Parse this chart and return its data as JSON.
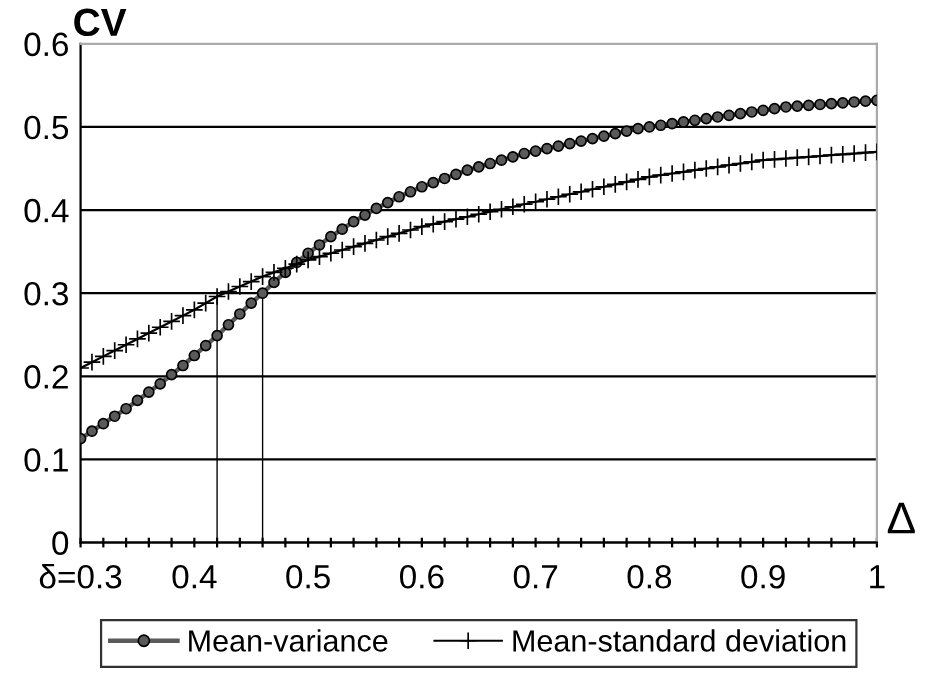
{
  "chart_data": {
    "type": "line",
    "xlabel": "Δ",
    "ylabel": "CV",
    "xlim": [
      0.3,
      1
    ],
    "ylim": [
      0,
      0.6
    ],
    "xticks": [
      {
        "value": 0.3,
        "label": "δ=0.3"
      },
      {
        "value": 0.32,
        "label": null
      },
      {
        "value": 0.34,
        "label": null
      },
      {
        "value": 0.36,
        "label": null
      },
      {
        "value": 0.38,
        "label": null
      },
      0.4,
      {
        "value": 0.42,
        "label": null
      },
      {
        "value": 0.44,
        "label": null
      },
      {
        "value": 0.46,
        "label": null
      },
      {
        "value": 0.48,
        "label": null
      },
      0.5,
      {
        "value": 0.52,
        "label": null
      },
      {
        "value": 0.54,
        "label": null
      },
      {
        "value": 0.56,
        "label": null
      },
      {
        "value": 0.58,
        "label": null
      },
      0.6,
      {
        "value": 0.62,
        "label": null
      },
      {
        "value": 0.64,
        "label": null
      },
      {
        "value": 0.66,
        "label": null
      },
      {
        "value": 0.68,
        "label": null
      },
      0.7,
      {
        "value": 0.72,
        "label": null
      },
      {
        "value": 0.74,
        "label": null
      },
      {
        "value": 0.76,
        "label": null
      },
      {
        "value": 0.78,
        "label": null
      },
      0.8,
      {
        "value": 0.82,
        "label": null
      },
      {
        "value": 0.84,
        "label": null
      },
      {
        "value": 0.86,
        "label": null
      },
      {
        "value": 0.88,
        "label": null
      },
      0.9,
      {
        "value": 0.92,
        "label": null
      },
      {
        "value": 0.94,
        "label": null
      },
      {
        "value": 0.96,
        "label": null
      },
      {
        "value": 0.98,
        "label": null
      },
      1
    ],
    "yticks": [
      0,
      0.1,
      0.2,
      0.3,
      0.4,
      0.5,
      0.6
    ],
    "grid": "y",
    "legend": "bottom",
    "x": [
      0.3,
      0.31,
      0.32,
      0.33,
      0.34,
      0.35,
      0.36,
      0.37,
      0.38,
      0.39,
      0.4,
      0.41,
      0.42,
      0.43,
      0.44,
      0.45,
      0.46,
      0.47,
      0.48,
      0.49,
      0.5,
      0.51,
      0.52,
      0.53,
      0.54,
      0.55,
      0.56,
      0.57,
      0.58,
      0.59,
      0.6,
      0.61,
      0.62,
      0.63,
      0.64,
      0.65,
      0.66,
      0.67,
      0.68,
      0.69,
      0.7,
      0.71,
      0.72,
      0.73,
      0.74,
      0.75,
      0.76,
      0.77,
      0.78,
      0.79,
      0.8,
      0.81,
      0.82,
      0.83,
      0.84,
      0.85,
      0.86,
      0.87,
      0.88,
      0.89,
      0.9,
      0.91,
      0.92,
      0.93,
      0.94,
      0.95,
      0.96,
      0.97,
      0.98,
      0.99,
      1
    ],
    "series": [
      {
        "name": "Mean-variance",
        "color": "#5a5a5a",
        "marker": "circle",
        "values": [
          0.125,
          0.134,
          0.143,
          0.152,
          0.161,
          0.171,
          0.181,
          0.191,
          0.202,
          0.213,
          0.225,
          0.237,
          0.249,
          0.262,
          0.275,
          0.288,
          0.3,
          0.313,
          0.325,
          0.337,
          0.348,
          0.358,
          0.368,
          0.377,
          0.386,
          0.394,
          0.402,
          0.409,
          0.416,
          0.422,
          0.428,
          0.433,
          0.438,
          0.443,
          0.448,
          0.452,
          0.456,
          0.46,
          0.464,
          0.468,
          0.471,
          0.474,
          0.477,
          0.48,
          0.483,
          0.486,
          0.489,
          0.492,
          0.495,
          0.498,
          0.5,
          0.502,
          0.504,
          0.506,
          0.508,
          0.51,
          0.512,
          0.514,
          0.516,
          0.518,
          0.52,
          0.522,
          0.524,
          0.525,
          0.526,
          0.527,
          0.528,
          0.529,
          0.53,
          0.531,
          0.532
        ]
      },
      {
        "name": "Mean-standard deviation",
        "color": "#000000",
        "marker": "cross",
        "values": [
          0.21,
          0.217,
          0.224,
          0.231,
          0.238,
          0.245,
          0.252,
          0.259,
          0.266,
          0.273,
          0.28,
          0.288,
          0.296,
          0.302,
          0.308,
          0.314,
          0.32,
          0.325,
          0.33,
          0.335,
          0.34,
          0.344,
          0.348,
          0.352,
          0.356,
          0.36,
          0.364,
          0.368,
          0.372,
          0.376,
          0.38,
          0.383,
          0.386,
          0.389,
          0.392,
          0.395,
          0.398,
          0.401,
          0.404,
          0.407,
          0.41,
          0.413,
          0.416,
          0.419,
          0.422,
          0.425,
          0.428,
          0.431,
          0.434,
          0.437,
          0.44,
          0.442,
          0.444,
          0.446,
          0.448,
          0.45,
          0.452,
          0.454,
          0.456,
          0.458,
          0.46,
          0.461,
          0.462,
          0.463,
          0.464,
          0.465,
          0.466,
          0.467,
          0.468,
          0.469,
          0.47
        ]
      },
      {
        "type": "bar",
        "color": "#000000",
        "x": [
          0.42,
          0.46
        ],
        "values": [
          0.296,
          0.3
        ]
      }
    ]
  }
}
